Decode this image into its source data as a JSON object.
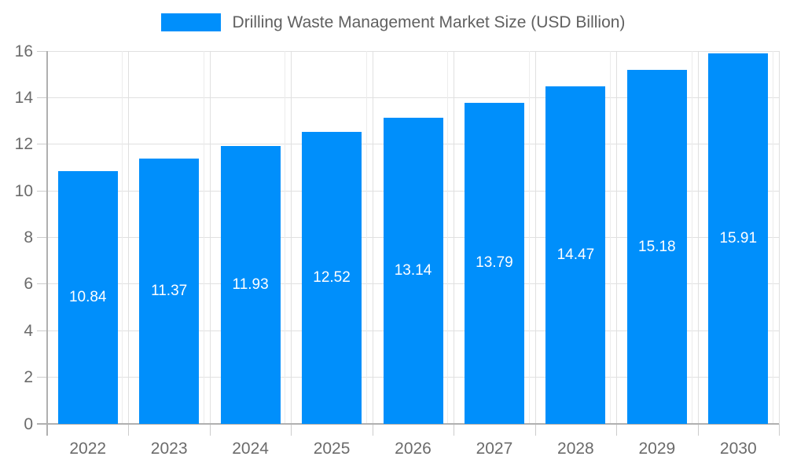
{
  "legend": {
    "label": "Drilling Waste Management Market Size (USD Billion)"
  },
  "chart_data": {
    "type": "bar",
    "title": "Drilling Waste Management Market Size (USD Billion)",
    "categories": [
      "2022",
      "2023",
      "2024",
      "2025",
      "2026",
      "2027",
      "2028",
      "2029",
      "2030"
    ],
    "values": [
      10.84,
      11.37,
      11.93,
      12.52,
      13.14,
      13.79,
      14.47,
      15.18,
      15.91
    ],
    "value_labels": [
      "10.84",
      "11.37",
      "11.93",
      "12.52",
      "13.14",
      "13.79",
      "14.47",
      "15.18",
      "15.91"
    ],
    "xlabel": "",
    "ylabel": "",
    "ylim": [
      0,
      16
    ],
    "ytick_step": 2,
    "ytick_labels": [
      "0",
      "2",
      "4",
      "6",
      "8",
      "10",
      "12",
      "14",
      "16"
    ],
    "grid": true,
    "legend_position": "top",
    "colors": {
      "bar": "#008FFB",
      "grid_line": "#e0e0e0",
      "grid_line_light": "#ececec",
      "axis_line": "#b0b0b0",
      "tick": "#cccccc",
      "axis_label": "#6b6b6b",
      "legend_text": "#606060",
      "value_label": "#ffffff"
    }
  }
}
